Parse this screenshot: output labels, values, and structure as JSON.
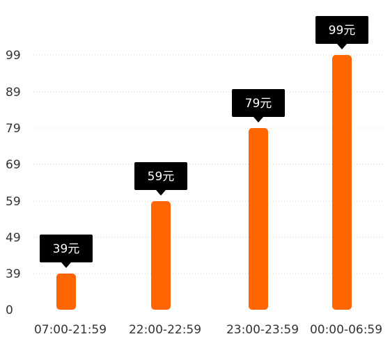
{
  "chart_data": {
    "type": "bar",
    "title": "",
    "xlabel": "",
    "ylabel": "",
    "categories": [
      "07:00-21:59",
      "22:00-22:59",
      "23:00-23:59",
      "00:00-06:59"
    ],
    "values": [
      39,
      59,
      79,
      99
    ],
    "data_labels": [
      "39元",
      "59元",
      "79元",
      "99元"
    ],
    "y_ticks": [
      0,
      39,
      49,
      59,
      69,
      79,
      89,
      99
    ],
    "y_tick_labels": [
      "0",
      "39",
      "49",
      "59",
      "69",
      "79",
      "89",
      "99"
    ],
    "grid": true,
    "bar_color": "#ff6600",
    "label_bg_color": "#000000",
    "label_text_color": "#ffffff"
  }
}
